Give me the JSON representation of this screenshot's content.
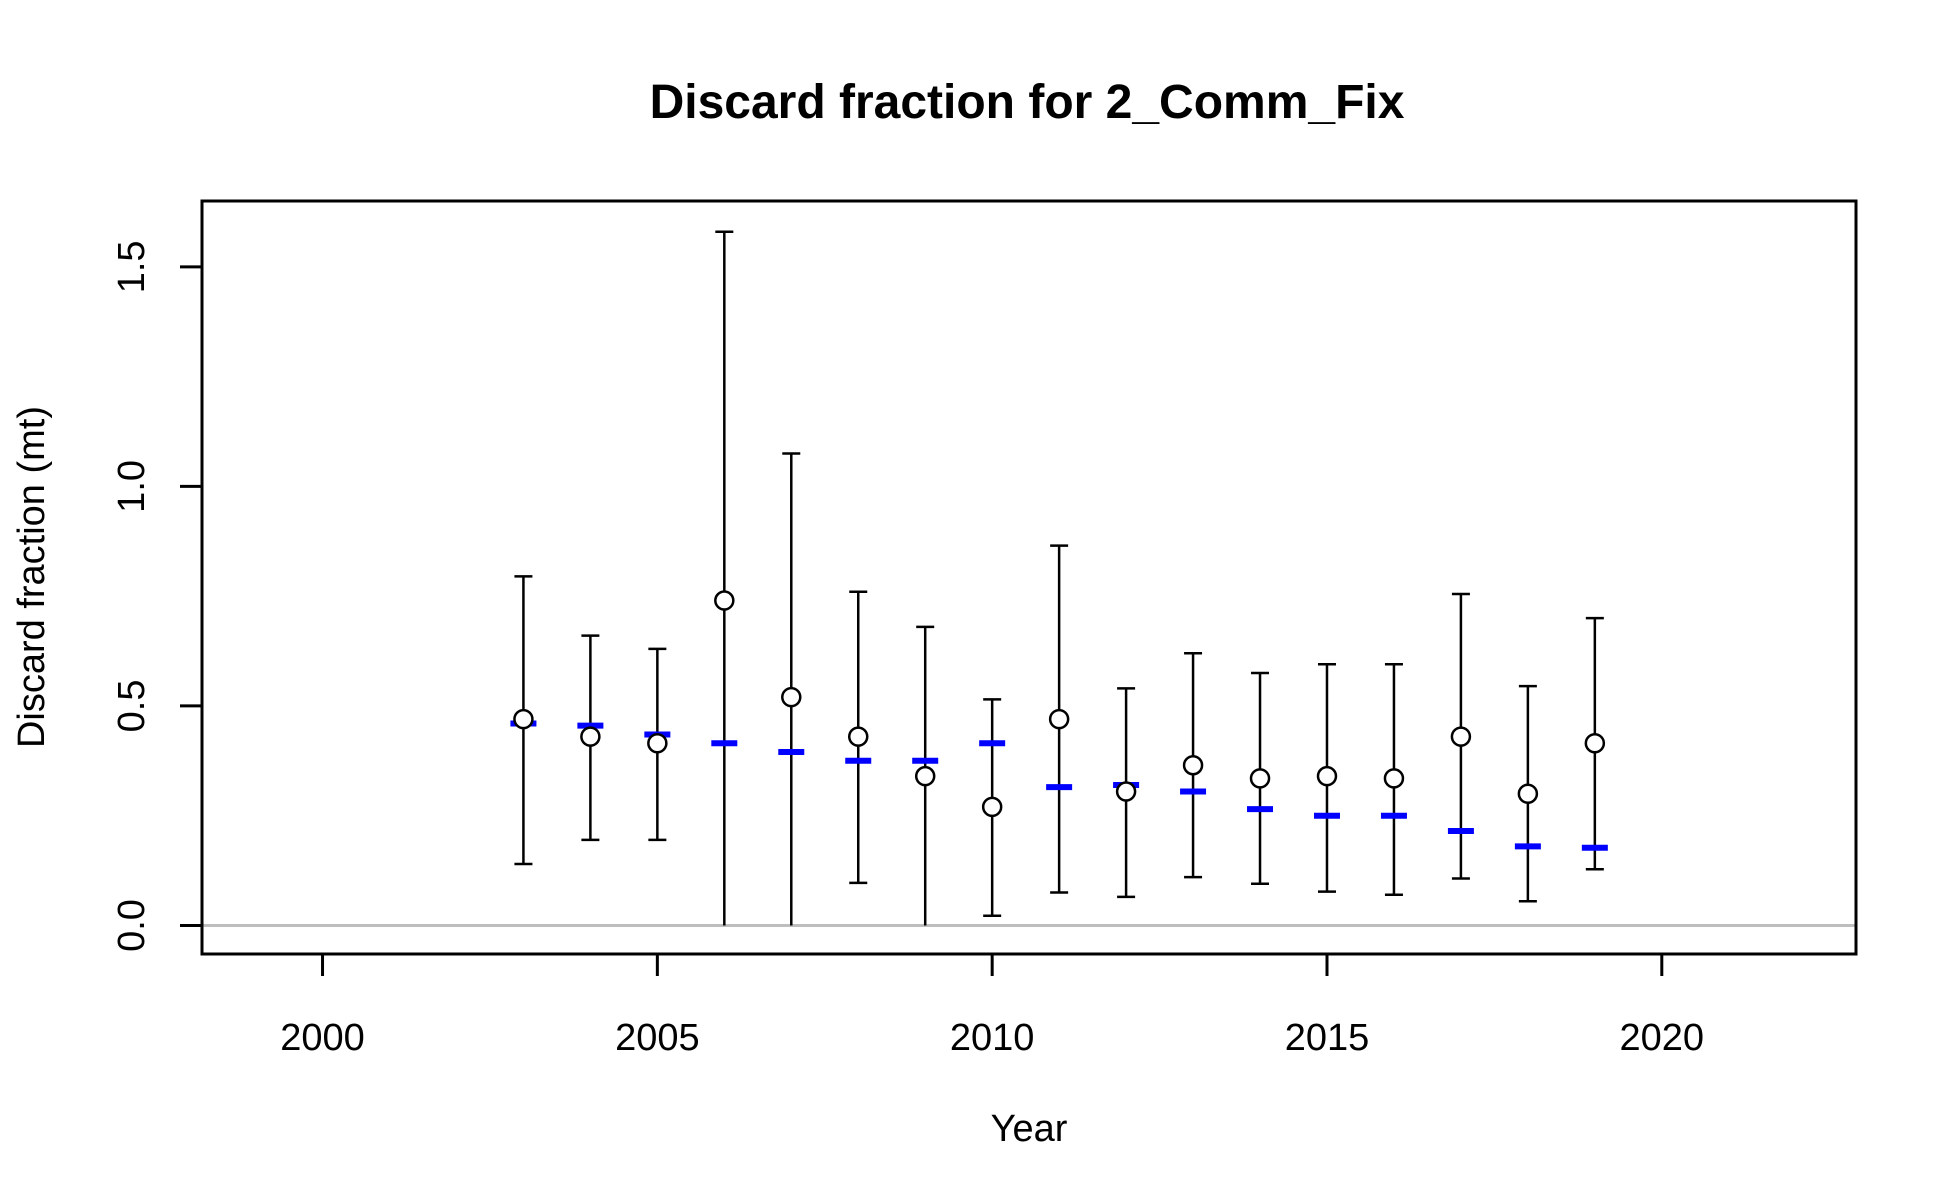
{
  "chart_data": {
    "type": "scatter",
    "title": "Discard fraction for 2_Comm_Fix",
    "xlabel": "Year",
    "ylabel": "Discard fraction (mt)",
    "xlim": [
      1998.2,
      2022.9
    ],
    "ylim": [
      -0.065,
      1.65
    ],
    "x_ticks": [
      2000,
      2005,
      2010,
      2015,
      2020
    ],
    "y_ticks": [
      0.0,
      0.5,
      1.0,
      1.5
    ],
    "x_tick_labels": [
      "2000",
      "2005",
      "2010",
      "2015",
      "2020"
    ],
    "y_tick_labels": [
      "0.0",
      "0.5",
      "1.0",
      "1.5"
    ],
    "reference_line": {
      "y": 0,
      "color": "#bebebe"
    },
    "colors": {
      "observed": "#000000",
      "expected": "#0000ff"
    },
    "grid": false,
    "legend": "none",
    "series": [
      {
        "type": "error_points",
        "x": [
          2003,
          2004,
          2005,
          2006,
          2007,
          2008,
          2009,
          2010,
          2011,
          2012,
          2013,
          2014,
          2015,
          2016,
          2017,
          2018,
          2019
        ],
        "values": [
          0.47,
          0.43,
          0.415,
          0.74,
          0.52,
          0.43,
          0.34,
          0.27,
          0.47,
          0.305,
          0.365,
          0.335,
          0.34,
          0.335,
          0.43,
          0.3,
          0.415
        ],
        "lower": [
          0.14,
          0.195,
          0.195,
          0.0,
          0.0,
          0.097,
          0.0,
          0.022,
          0.075,
          0.065,
          0.11,
          0.095,
          0.077,
          0.07,
          0.107,
          0.055,
          0.128
        ],
        "upper": [
          0.795,
          0.66,
          0.63,
          1.58,
          1.075,
          0.76,
          0.68,
          0.515,
          0.865,
          0.54,
          0.62,
          0.575,
          0.595,
          0.595,
          0.755,
          0.545,
          0.7
        ]
      },
      {
        "type": "expected_dashes",
        "x": [
          2003,
          2004,
          2005,
          2006,
          2007,
          2008,
          2009,
          2010,
          2011,
          2012,
          2013,
          2014,
          2015,
          2016,
          2017,
          2018,
          2019
        ],
        "values": [
          0.46,
          0.455,
          0.435,
          0.415,
          0.395,
          0.375,
          0.375,
          0.415,
          0.315,
          0.32,
          0.305,
          0.265,
          0.25,
          0.25,
          0.215,
          0.18,
          0.177
        ]
      }
    ]
  }
}
